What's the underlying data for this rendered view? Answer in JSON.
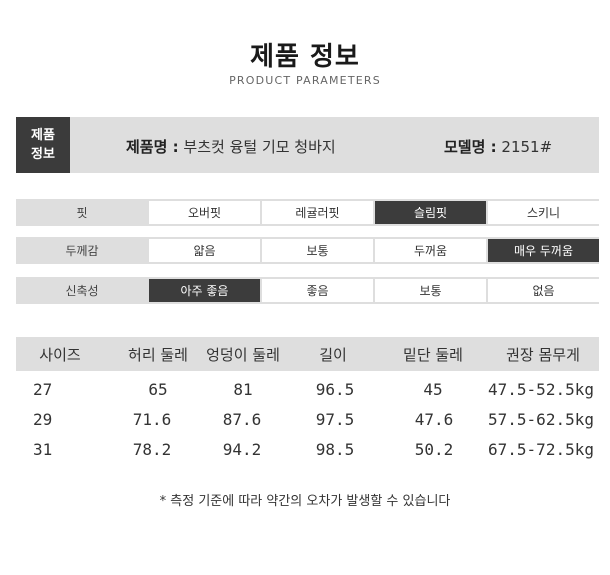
{
  "header": {
    "title": "제품 정보",
    "subtitle": "PRODUCT PARAMETERS"
  },
  "info": {
    "badge_line1": "제품",
    "badge_line2": "정보",
    "name_label": "제품명 :",
    "name_value": "부츠컷 융털 기모 청바지",
    "model_label": "모델명 :",
    "model_value": "2151#"
  },
  "attributes": [
    {
      "label": "핏",
      "options": [
        "오버핏",
        "레귤러핏",
        "슬림핏",
        "스키니"
      ],
      "selected": "슬림핏"
    },
    {
      "label": "두께감",
      "options": [
        "얇음",
        "보통",
        "두꺼움",
        "매우 두꺼움"
      ],
      "selected": "매우 두꺼움"
    },
    {
      "label": "신축성",
      "options": [
        "아주 좋음",
        "좋음",
        "보통",
        "없음"
      ],
      "selected": "아주 좋음"
    }
  ],
  "size_table": {
    "headers": [
      "사이즈",
      "허리 둘레",
      "엉덩이 둘레",
      "길이",
      "밑단 둘레",
      "권장 몸무게"
    ],
    "rows": [
      [
        "27",
        "65",
        "81",
        "96.5",
        "45",
        "47.5-52.5kg"
      ],
      [
        "29",
        "71.6",
        "87.6",
        "97.5",
        "47.6",
        "57.5-62.5kg"
      ],
      [
        "31",
        "78.2",
        "94.2",
        "98.5",
        "50.2",
        "67.5-72.5kg"
      ]
    ]
  },
  "note": "* 측정 기준에 따라 약간의 오차가 발생할 수 있습니다",
  "colors": {
    "panel_gray": "#dedede",
    "selected_dark": "#3c3c3c",
    "text_dark": "#222222"
  }
}
